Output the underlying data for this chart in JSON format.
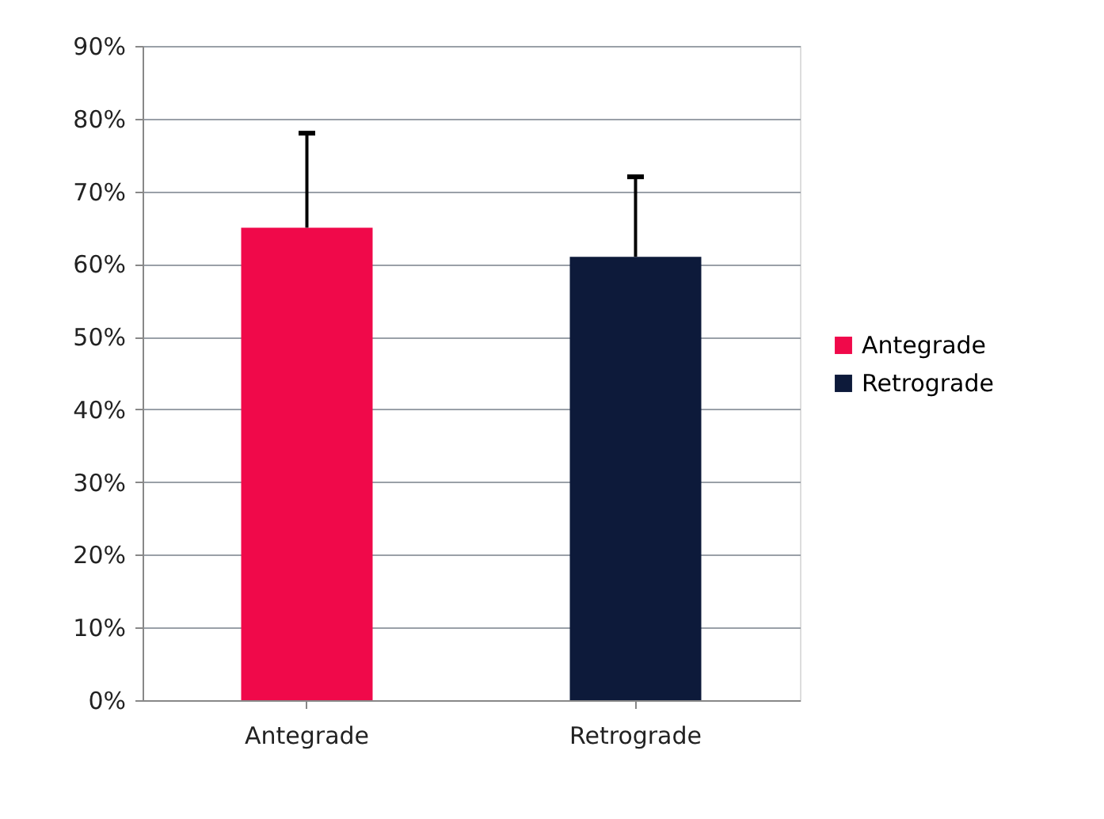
{
  "chart_data": {
    "type": "bar",
    "categories": [
      "Antegrade",
      "Retrograde"
    ],
    "series": [
      {
        "name": "Antegrade",
        "color": "#f0094a",
        "values": [
          65,
          null
        ],
        "errors": [
          [
            65,
            78
          ],
          null
        ]
      },
      {
        "name": "Retrograde",
        "color": "#0d1a3a",
        "values": [
          null,
          61
        ],
        "errors": [
          null,
          [
            61,
            72
          ]
        ]
      }
    ],
    "ylim": [
      0,
      90
    ],
    "yticks": [
      {
        "value": 0,
        "label": "0%"
      },
      {
        "value": 10,
        "label": "10%"
      },
      {
        "value": 20,
        "label": "20%"
      },
      {
        "value": 30,
        "label": "30%"
      },
      {
        "value": 40,
        "label": "40%"
      },
      {
        "value": 50,
        "label": "50%"
      },
      {
        "value": 60,
        "label": "60%"
      },
      {
        "value": 70,
        "label": "70%"
      },
      {
        "value": 80,
        "label": "80%"
      },
      {
        "value": 90,
        "label": "90%"
      }
    ],
    "grid": "y",
    "legend": "right"
  }
}
